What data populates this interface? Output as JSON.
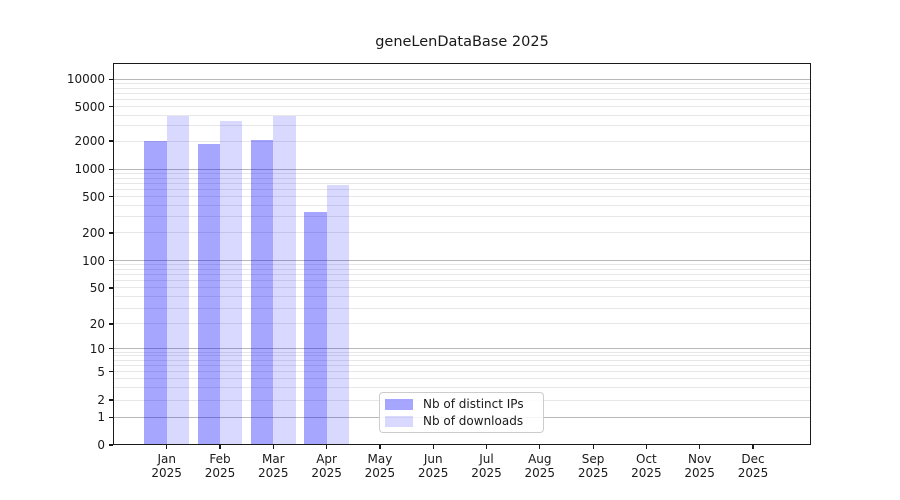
{
  "chart_data": {
    "type": "bar",
    "title": "geneLenDataBase 2025",
    "xlabel": "",
    "ylabel": "",
    "yscale": "symlog",
    "ylim": [
      0,
      15000
    ],
    "y_tick_values": [
      0,
      1,
      2,
      5,
      10,
      20,
      50,
      100,
      200,
      500,
      1000,
      2000,
      5000,
      10000
    ],
    "categories": [
      "Jan",
      "Feb",
      "Mar",
      "Apr",
      "May",
      "Jun",
      "Jul",
      "Aug",
      "Sep",
      "Oct",
      "Nov",
      "Dec"
    ],
    "x_year_label": "2025",
    "series": [
      {
        "name": "Nb of distinct IPs",
        "color": "rgba(0,0,255,0.35)",
        "color_hex": "#a6a6ff",
        "values": [
          2000,
          1850,
          2080,
          340,
          0,
          0,
          0,
          0,
          0,
          0,
          0,
          0
        ]
      },
      {
        "name": "Nb of downloads",
        "color": "rgba(0,0,255,0.15)",
        "color_hex": "#d9d9ff",
        "values": [
          3850,
          3400,
          3850,
          680,
          0,
          0,
          0,
          0,
          0,
          0,
          0,
          0
        ]
      }
    ],
    "grid": {
      "major_color": "#b8b8b8",
      "minor_color": "#e7e7e7",
      "major_at_powers_of_ten": true
    },
    "legend": {
      "position": "lower center",
      "entries": [
        "Nb of distinct IPs",
        "Nb of downloads"
      ]
    }
  }
}
